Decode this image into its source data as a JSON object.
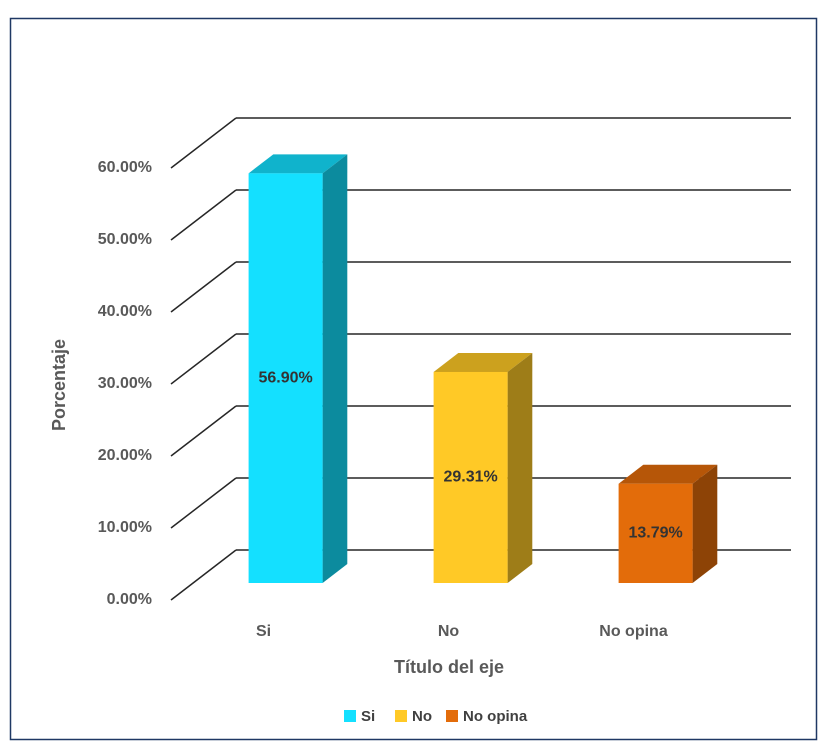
{
  "chart_data": {
    "type": "bar3d",
    "x_label": "Título del eje",
    "y_label": "Porcentaje",
    "categories": [
      "Si",
      "No",
      "No opina"
    ],
    "series": [
      {
        "name": "Si",
        "color": "#14e0ff"
      },
      {
        "name": "No",
        "color": "#ffc926"
      },
      {
        "name": "No opina",
        "color": "#e36c0a"
      }
    ],
    "values": [
      56.9,
      29.31,
      13.79
    ],
    "value_labels": [
      "56.90%",
      "29.31%",
      "13.79%"
    ],
    "ylim": [
      0,
      60
    ],
    "yticks": [
      {
        "value": 0,
        "label": "0.00%"
      },
      {
        "value": 10,
        "label": "10.00%"
      },
      {
        "value": 20,
        "label": "20.00%"
      },
      {
        "value": 30,
        "label": "30.00%"
      },
      {
        "value": 40,
        "label": "40.00%"
      },
      {
        "value": 50,
        "label": "50.00%"
      },
      {
        "value": 60,
        "label": "60.00%"
      }
    ],
    "grid": true,
    "legend": "bottom"
  }
}
